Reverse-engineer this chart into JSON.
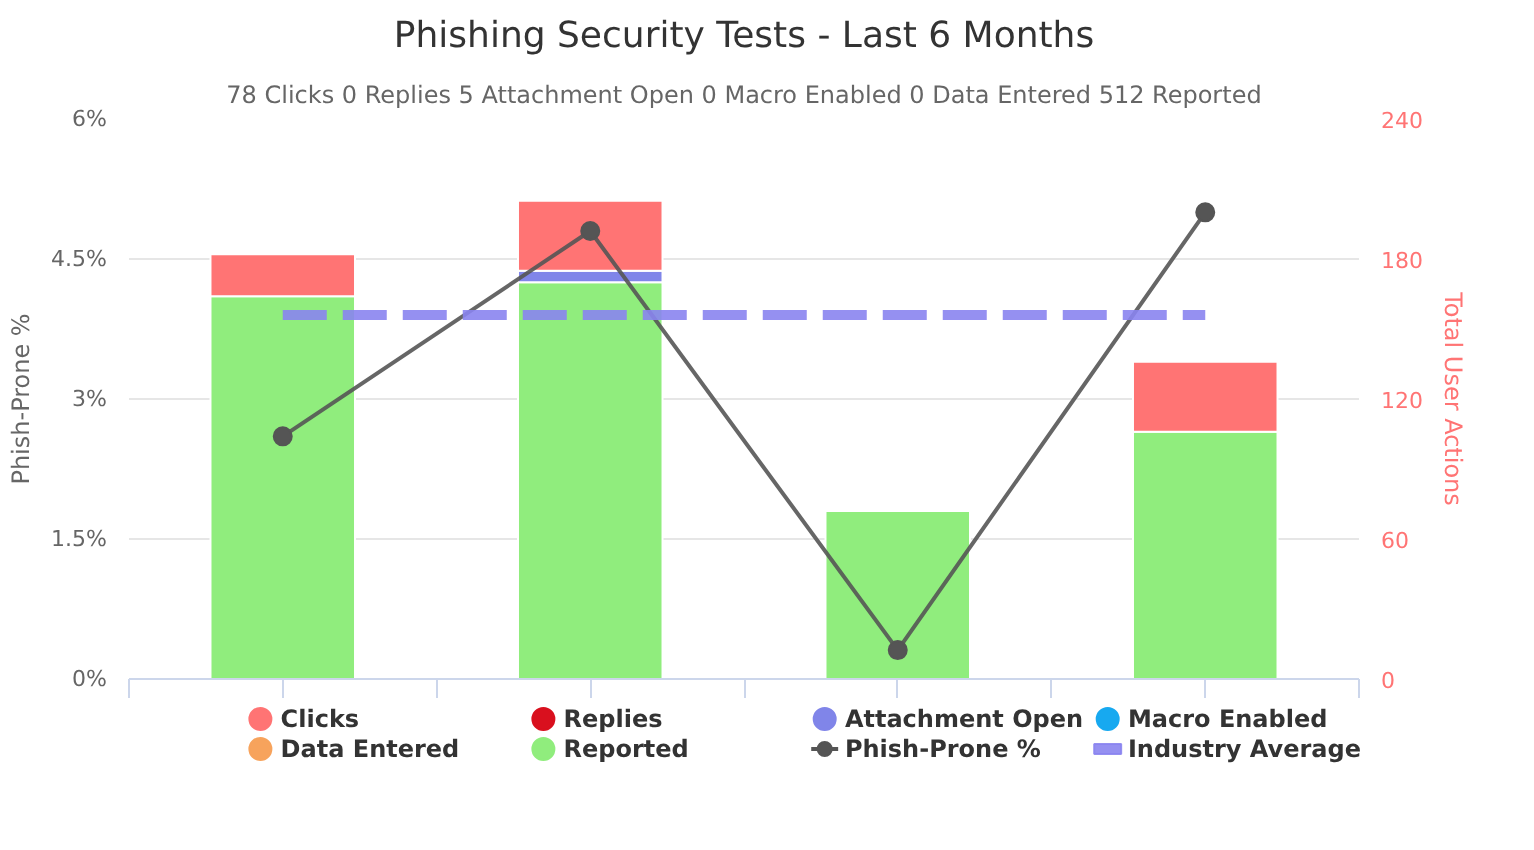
{
  "chart_data": {
    "type": "bar",
    "stacked": true,
    "title": "Phishing Security Tests - Last 6 Months",
    "subtitle": "78 Clicks 0 Replies 5 Attachment Open 0 Macro Enabled 0 Data Entered 512 Reported",
    "ylabel": "Phish-Prone %",
    "y2label": "Total User Actions",
    "categories": [
      null,
      null,
      null,
      null
    ],
    "series": [
      {
        "name": "Reported",
        "color": "#90ed7d",
        "axis": "y2",
        "values": [
          164,
          170,
          72,
          106
        ]
      },
      {
        "name": "Data Entered",
        "color": "#f7a35c",
        "axis": "y2",
        "values": [
          0,
          0,
          0,
          0
        ]
      },
      {
        "name": "Macro Enabled",
        "color": "#17a9f0",
        "axis": "y2",
        "values": [
          0,
          0,
          0,
          0
        ]
      },
      {
        "name": "Attachment Open",
        "color": "#8085e9",
        "axis": "y2",
        "values": [
          0,
          5,
          0,
          0
        ]
      },
      {
        "name": "Replies",
        "color": "#d9101e",
        "axis": "y2",
        "values": [
          0,
          0,
          0,
          0
        ]
      },
      {
        "name": "Clicks",
        "color": "#ff7474",
        "axis": "y2",
        "values": [
          18,
          30,
          0,
          30
        ]
      },
      {
        "name": "Phish-Prone %",
        "type": "line",
        "color": "#555555",
        "marker": "circle",
        "line_style": "solid",
        "values": [
          2.6,
          4.8,
          0.31,
          5.0
        ]
      },
      {
        "name": "Industry Average",
        "type": "line",
        "color": "#8a84f0",
        "marker": "none",
        "line_style": "dashed",
        "values": [
          3.9,
          3.9,
          3.9,
          3.9
        ]
      }
    ],
    "ylim": [
      0,
      6
    ],
    "yticks": [
      {
        "value": 0,
        "label": "0%"
      },
      {
        "value": 1.5,
        "label": "1.5%"
      },
      {
        "value": 3,
        "label": "3%"
      },
      {
        "value": 4.5,
        "label": "4.5%"
      },
      {
        "value": 6,
        "label": "6%"
      }
    ],
    "y2lim": [
      0,
      240
    ],
    "y2ticks": [
      0,
      60,
      120,
      180,
      240
    ],
    "grid": "y",
    "legend": "bottom"
  }
}
